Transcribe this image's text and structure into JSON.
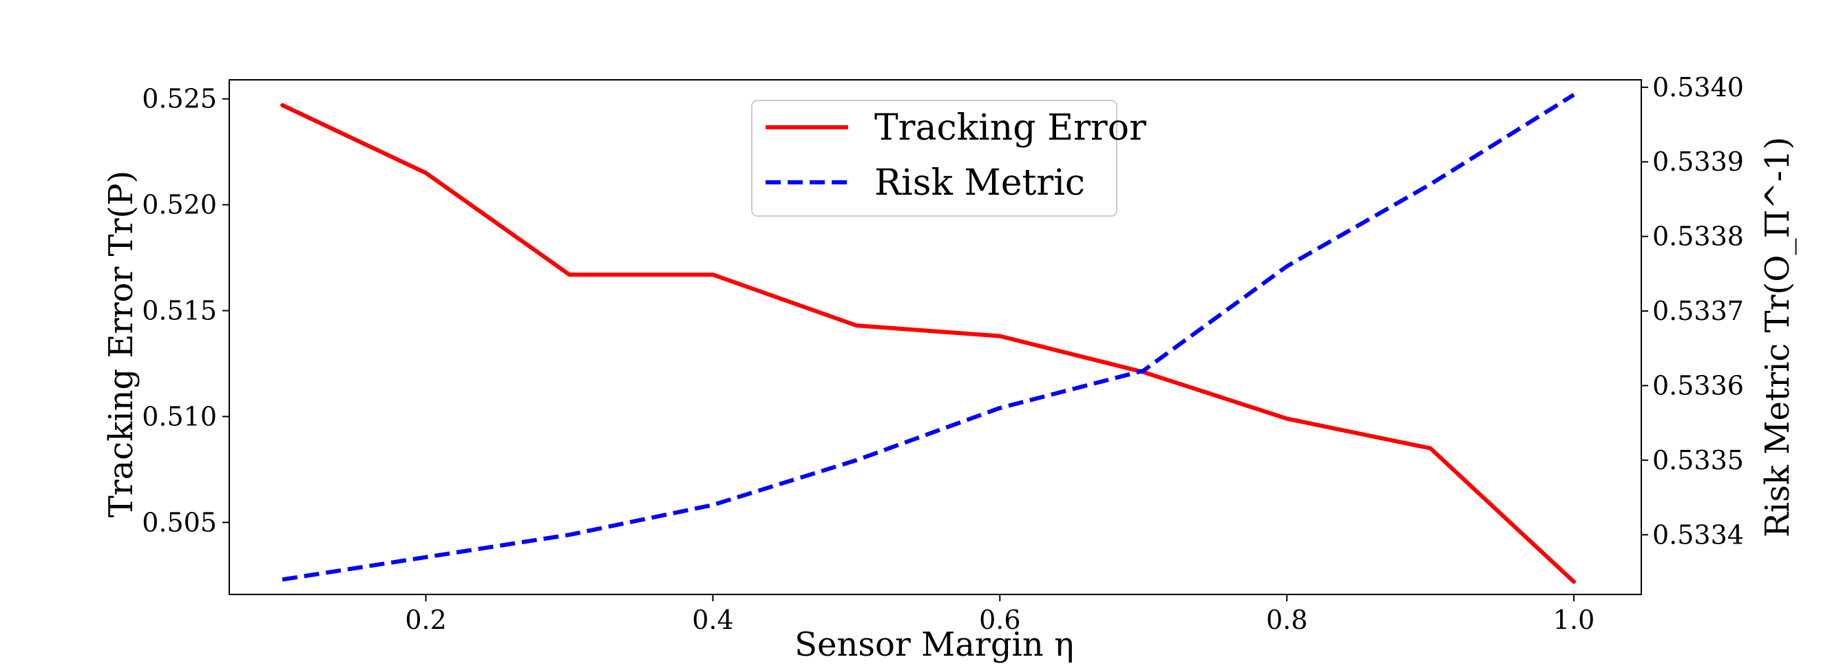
{
  "chart_data": {
    "type": "line",
    "xlabel": "Sensor Margin η",
    "ylabel_left": "Tracking Error Tr(P)",
    "ylabel_right": "Risk Metric Tr(O_Π^-1)",
    "x": [
      0.1,
      0.2,
      0.3,
      0.4,
      0.5,
      0.6,
      0.7,
      0.8,
      0.9,
      1.0
    ],
    "xlim": [
      0.063,
      1.047
    ],
    "x_ticks": [
      "0.2",
      "0.4",
      "0.6",
      "0.8",
      "1.0"
    ],
    "ylim_left": [
      0.5016,
      0.5259
    ],
    "ylim_right": [
      0.53332,
      0.53401
    ],
    "y_ticks_left": [
      "0.505",
      "0.510",
      "0.515",
      "0.520",
      "0.525"
    ],
    "y_ticks_right": [
      "0.5334",
      "0.5335",
      "0.5336",
      "0.5337",
      "0.5338",
      "0.5339",
      "0.5340"
    ],
    "series": [
      {
        "name": "Tracking Error",
        "axis": "left",
        "color": "#ff0000",
        "style": "solid",
        "values": [
          0.5247,
          0.5215,
          0.5167,
          0.5167,
          0.5143,
          0.5138,
          0.5121,
          0.5099,
          0.5085,
          0.5022
        ]
      },
      {
        "name": "Risk Metric",
        "axis": "right",
        "color": "#0000ff",
        "style": "dashed",
        "values": [
          0.53334,
          0.53337,
          0.5334,
          0.53344,
          0.5335,
          0.53357,
          0.53362,
          0.53376,
          0.53387,
          0.53399
        ]
      }
    ],
    "legend_position": "top-center",
    "grid": false
  }
}
